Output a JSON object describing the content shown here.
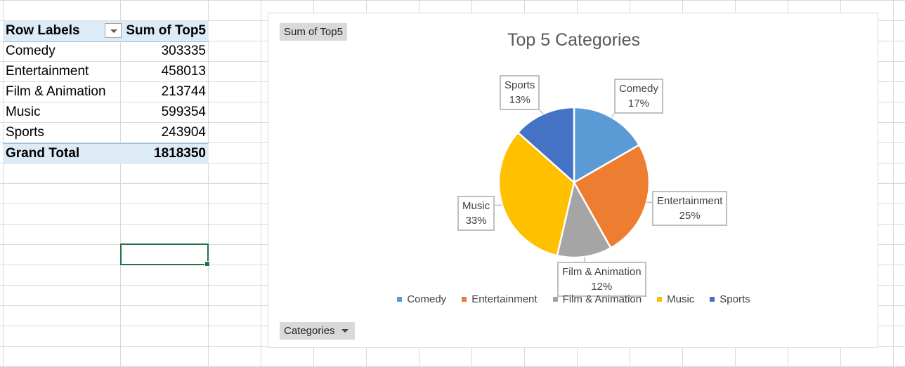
{
  "pivot": {
    "header": {
      "row_labels": "Row Labels",
      "sum_label": "Sum of Top5"
    },
    "rows": [
      {
        "label": "Comedy",
        "value": "303335"
      },
      {
        "label": "Entertainment",
        "value": "458013"
      },
      {
        "label": "Film & Animation",
        "value": "213744"
      },
      {
        "label": "Music",
        "value": "599354"
      },
      {
        "label": "Sports",
        "value": "243904"
      }
    ],
    "grand_total": {
      "label": "Grand Total",
      "value": "1818350"
    }
  },
  "chart": {
    "value_field_button": "Sum of Top5",
    "axis_field_button": "Categories"
  },
  "chart_data": {
    "type": "pie",
    "title": "Top 5 Categories",
    "categories": [
      "Comedy",
      "Entertainment",
      "Film & Animation",
      "Music",
      "Sports"
    ],
    "values": [
      303335,
      458013,
      213744,
      599354,
      243904
    ],
    "colors": [
      "#5b9bd5",
      "#ed7d31",
      "#a5a5a5",
      "#ffc000",
      "#4472c4"
    ],
    "data_labels": [
      {
        "name": "Comedy",
        "percent": "17%"
      },
      {
        "name": "Entertainment",
        "percent": "25%"
      },
      {
        "name": "Film & Animation",
        "percent": "12%"
      },
      {
        "name": "Music",
        "percent": "33%"
      },
      {
        "name": "Sports",
        "percent": "13%"
      }
    ],
    "legend": [
      "Comedy",
      "Entertainment",
      "Film & Animation",
      "Music",
      "Sports"
    ],
    "legend_position": "bottom"
  }
}
